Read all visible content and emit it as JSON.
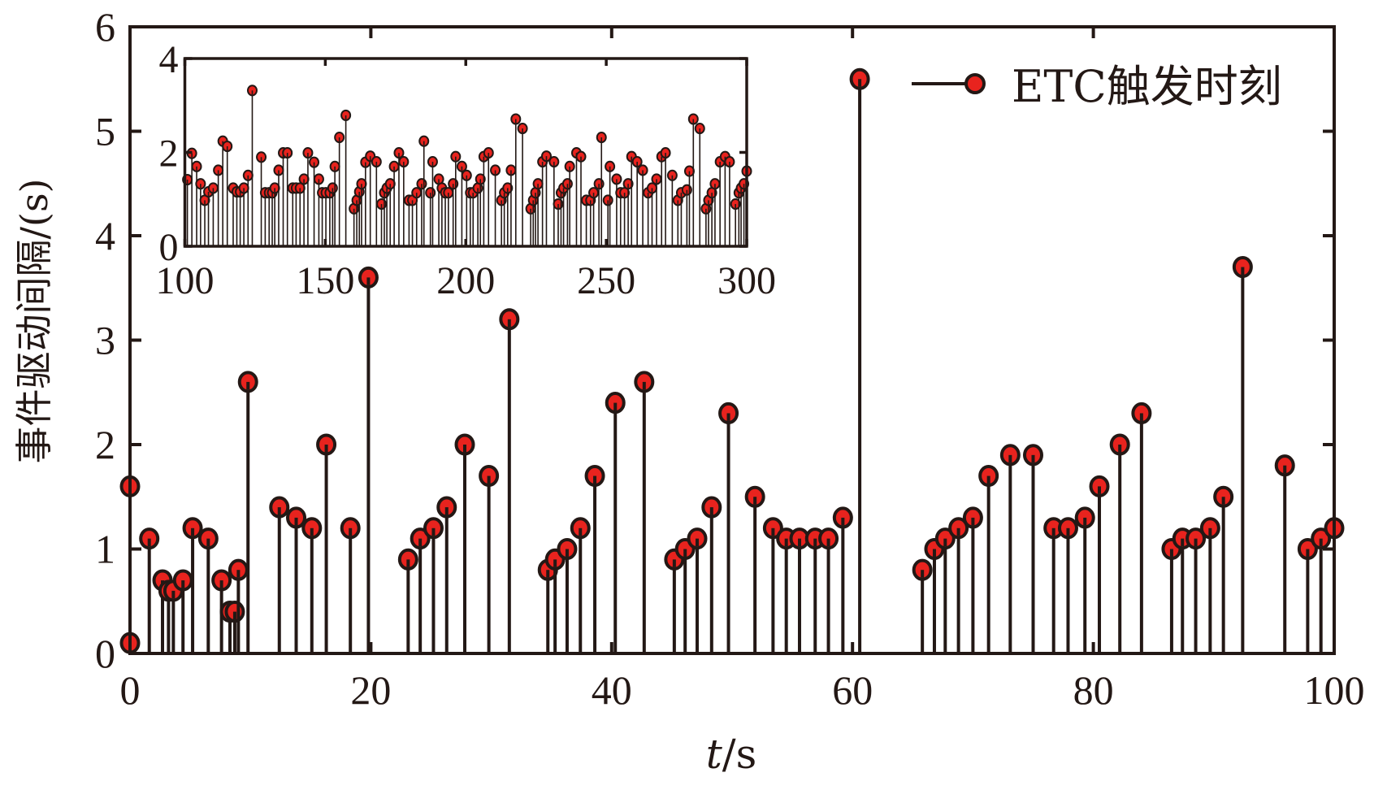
{
  "chart_data": [
    {
      "type": "stem",
      "xlabel_italic": "t",
      "xlabel_unit": "/s",
      "ylabel": "事件驱动间隔/(s)",
      "xlim": [
        0,
        100
      ],
      "ylim": [
        0,
        6
      ],
      "xticks": [
        0,
        20,
        40,
        60,
        80,
        100
      ],
      "yticks": [
        0,
        1,
        2,
        3,
        4,
        5,
        6
      ],
      "grid": false,
      "legend": {
        "placement": "top-right",
        "entries": [
          "ETC触发时刻"
        ]
      },
      "colors": {
        "marker_fill": "#e8231e",
        "marker_edge": "#231815",
        "stem": "#231815"
      },
      "series": [
        {
          "name": "ETC触发时刻",
          "x": [
            0,
            0,
            1.6,
            2.7,
            3.2,
            3.6,
            4.4,
            5.2,
            6.5,
            7.6,
            8.3,
            8.7,
            9.0,
            9.8,
            12.4,
            13.8,
            15.1,
            16.3,
            18.3,
            19.8,
            23.1,
            24.1,
            25.2,
            26.3,
            27.8,
            29.8,
            31.5,
            34.7,
            35.3,
            36.3,
            37.4,
            38.6,
            40.3,
            42.7,
            45.2,
            46.1,
            47.1,
            48.3,
            49.7,
            51.9,
            53.4,
            54.5,
            55.6,
            56.9,
            58.0,
            59.2,
            60.6,
            65.8,
            66.8,
            67.7,
            68.8,
            70.0,
            71.3,
            73.1,
            75.0,
            76.7,
            77.9,
            79.3,
            80.5,
            82.2,
            84.0,
            86.5,
            87.4,
            88.5,
            89.7,
            90.8,
            92.4,
            95.9,
            97.8,
            98.9,
            100
          ],
          "y": [
            0.1,
            1.6,
            1.1,
            0.7,
            0.6,
            0.6,
            0.7,
            1.2,
            1.1,
            0.7,
            0.4,
            0.4,
            0.8,
            2.6,
            1.4,
            1.3,
            1.2,
            2.0,
            1.2,
            3.6,
            0.9,
            1.1,
            1.2,
            1.4,
            2.0,
            1.7,
            3.2,
            0.8,
            0.9,
            1.0,
            1.2,
            1.7,
            2.4,
            2.6,
            0.9,
            1.0,
            1.1,
            1.4,
            2.3,
            1.5,
            1.2,
            1.1,
            1.1,
            1.1,
            1.1,
            1.3,
            5.5,
            0.8,
            1.0,
            1.1,
            1.2,
            1.3,
            1.7,
            1.9,
            1.9,
            1.2,
            1.2,
            1.3,
            1.6,
            2.0,
            2.3,
            1.0,
            1.1,
            1.1,
            1.2,
            1.5,
            3.7,
            1.8,
            1.0,
            1.1,
            1.2
          ]
        }
      ]
    },
    {
      "type": "stem",
      "role": "inset",
      "xlim": [
        100,
        300
      ],
      "ylim": [
        0,
        4
      ],
      "xticks": [
        100,
        150,
        200,
        250,
        300
      ],
      "yticks": [
        0,
        2,
        4
      ],
      "grid": false,
      "series": [
        {
          "x": [
            100.9,
            102.5,
            104.2,
            105.6,
            107.1,
            108.4,
            110.1,
            111.9,
            113.5,
            115.1,
            117.2,
            118.5,
            119.7,
            121,
            122.5,
            124,
            127.2,
            128.6,
            130,
            131.1,
            132,
            133.4,
            135,
            136.5,
            138.4,
            139.6,
            141,
            142.4,
            143.8,
            146,
            147.7,
            148.9,
            150.2,
            151.6,
            152.6,
            153.4,
            155,
            157.3,
            160.2,
            161.2,
            162.1,
            162.9,
            164.3,
            166,
            168.2,
            170,
            171,
            171.9,
            173.1,
            174.5,
            176.2,
            177.9,
            179.8,
            181,
            182.5,
            184.3,
            185.1,
            187.4,
            188.2,
            190.4,
            191.5,
            192.7,
            193.8,
            195.5,
            196.4,
            198.6,
            200.3,
            201.6,
            202.6,
            204.3,
            205.2,
            206.4,
            208.1,
            210.5,
            212.7,
            213.7,
            214.9,
            216.1,
            217.8,
            220.2,
            223.1,
            224,
            224.8,
            225.7,
            227.3,
            228.7,
            231.4,
            232.9,
            233.9,
            234.8,
            236.2,
            237,
            239.4,
            241,
            242.9,
            244.4,
            245.5,
            247.4,
            248.3,
            250.6,
            251.3,
            253.7,
            255.1,
            256.5,
            257.8,
            259,
            261,
            263,
            264.9,
            266.3,
            267.9,
            269.7,
            271.1,
            273.5,
            275.5,
            276.7,
            278.7,
            279.6,
            281,
            283.3,
            285.5,
            286.4,
            287.6,
            288.7,
            290.5,
            292.3,
            293.9,
            296,
            297.2,
            298,
            299,
            300
          ],
          "y": [
            1.42,
            1.98,
            1.7,
            1.33,
            0.98,
            1.16,
            1.24,
            1.62,
            2.24,
            2.13,
            1.24,
            1.16,
            1.16,
            1.24,
            1.51,
            3.32,
            1.9,
            1.14,
            1.14,
            1.14,
            1.24,
            1.62,
            1.99,
            1.99,
            1.24,
            1.24,
            1.24,
            1.43,
            1.99,
            1.79,
            1.43,
            1.14,
            1.14,
            1.14,
            1.24,
            1.7,
            2.32,
            2.79,
            0.8,
            0.98,
            1.16,
            1.33,
            1.79,
            1.92,
            1.8,
            0.9,
            1.14,
            1.24,
            1.33,
            1.7,
            1.99,
            1.8,
            0.98,
            0.98,
            1.14,
            1.33,
            2.24,
            1.14,
            1.8,
            1.43,
            1.24,
            1.14,
            1.14,
            1.33,
            1.91,
            1.7,
            1.51,
            1.14,
            1.14,
            1.24,
            1.43,
            1.91,
            1.99,
            1.62,
            0.98,
            1.14,
            1.24,
            1.62,
            2.71,
            2.51,
            0.8,
            0.98,
            1.14,
            1.33,
            1.8,
            1.92,
            1.8,
            0.9,
            1.14,
            1.24,
            1.33,
            1.7,
            1.99,
            1.91,
            0.98,
            0.98,
            1.14,
            1.33,
            2.32,
            0.98,
            1.7,
            1.43,
            1.14,
            1.14,
            1.33,
            1.91,
            1.8,
            1.62,
            1.14,
            1.24,
            1.43,
            1.91,
            1.99,
            1.51,
            0.98,
            1.14,
            1.2,
            1.6,
            2.71,
            2.51,
            0.8,
            0.98,
            1.14,
            1.33,
            1.8,
            1.91,
            1.8,
            0.9,
            1.14,
            1.24,
            1.33,
            1.6
          ]
        }
      ]
    }
  ]
}
